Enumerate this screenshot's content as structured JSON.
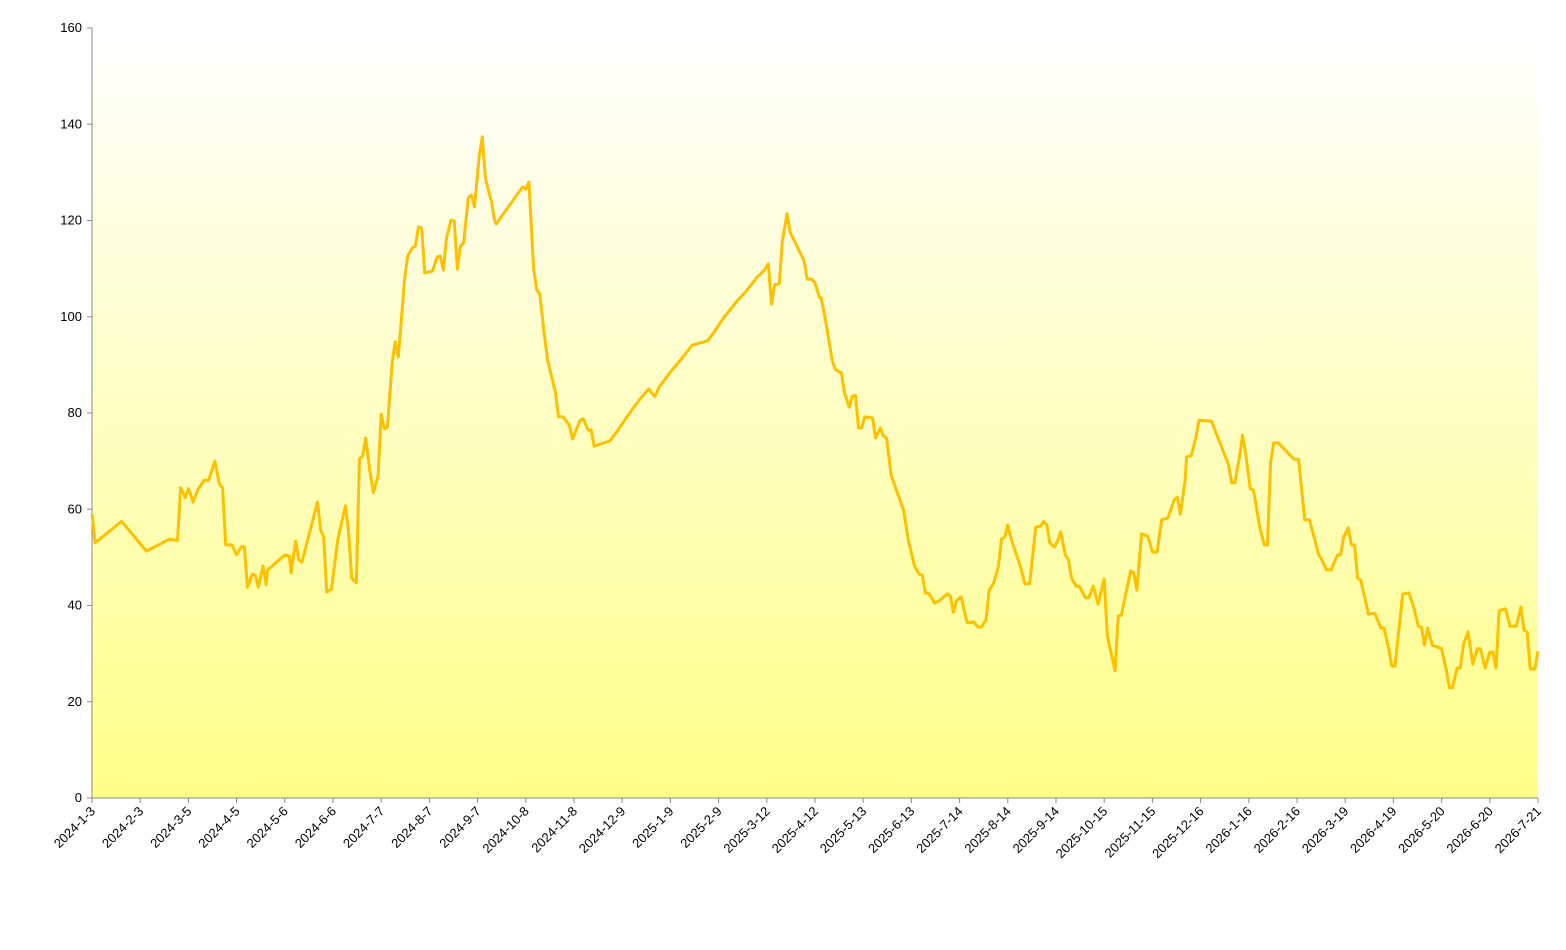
{
  "chart_data": {
    "type": "line",
    "x": [
      "2024-1-3",
      "2024-1-5",
      "2024-1-22",
      "2024-2-7",
      "2024-2-22",
      "2024-2-27",
      "2024-2-29",
      "2024-3-3",
      "2024-3-5",
      "2024-3-8",
      "2024-3-11",
      "2024-3-15",
      "2024-3-18",
      "2024-3-22",
      "2024-3-25",
      "2024-3-27",
      "2024-3-29",
      "2024-4-2",
      "2024-4-5",
      "2024-4-8",
      "2024-4-10",
      "2024-4-12",
      "2024-4-15",
      "2024-4-17",
      "2024-4-19",
      "2024-4-22",
      "2024-4-24",
      "2024-4-25",
      "2024-5-6",
      "2024-5-9",
      "2024-5-10",
      "2024-5-13",
      "2024-5-15",
      "2024-5-17",
      "2024-5-27",
      "2024-5-29",
      "2024-5-31",
      "2024-6-2",
      "2024-6-5",
      "2024-6-9",
      "2024-6-14",
      "2024-6-16",
      "2024-6-18",
      "2024-6-21",
      "2024-6-23",
      "2024-6-25",
      "2024-6-27",
      "2024-6-30",
      "2024-7-2",
      "2024-7-5",
      "2024-7-7",
      "2024-7-9",
      "2024-7-11",
      "2024-7-14",
      "2024-7-16",
      "2024-7-18",
      "2024-7-22",
      "2024-7-24",
      "2024-7-27",
      "2024-7-29",
      "2024-7-31",
      "2024-8-2",
      "2024-8-4",
      "2024-8-9",
      "2024-8-12",
      "2024-8-14",
      "2024-8-16",
      "2024-8-18",
      "2024-8-21",
      "2024-8-23",
      "2024-8-25",
      "2024-8-27",
      "2024-8-29",
      "2024-9-1",
      "2024-9-3",
      "2024-9-5",
      "2024-9-8",
      "2024-9-10",
      "2024-9-12",
      "2024-9-16",
      "2024-9-18",
      "2024-9-19",
      "2024-10-6",
      "2024-10-8",
      "2024-10-10",
      "2024-10-13",
      "2024-10-15",
      "2024-10-17",
      "2024-10-20",
      "2024-10-22",
      "2024-10-27",
      "2024-10-29",
      "2024-11-1",
      "2024-11-5",
      "2024-11-7",
      "2024-11-12",
      "2024-11-14",
      "2024-11-17",
      "2024-11-19",
      "2024-11-21",
      "2024-12-1",
      "2024-12-6",
      "2024-12-8",
      "2024-12-16",
      "2024-12-20",
      "2024-12-26",
      "2024-12-30",
      "2025-1-2",
      "2025-1-9",
      "2025-1-18",
      "2025-1-23",
      "2025-2-2",
      "2025-2-7",
      "2025-2-12",
      "2025-2-21",
      "2025-2-27",
      "2025-3-6",
      "2025-3-10",
      "2025-3-13",
      "2025-3-15",
      "2025-3-17",
      "2025-3-20",
      "2025-3-22",
      "2025-3-25",
      "2025-3-27",
      "2025-4-5",
      "2025-4-7",
      "2025-4-10",
      "2025-4-12",
      "2025-4-15",
      "2025-4-16",
      "2025-4-19",
      "2025-4-23",
      "2025-4-25",
      "2025-4-29",
      "2025-5-1",
      "2025-5-4",
      "2025-5-6",
      "2025-5-8",
      "2025-5-10",
      "2025-5-12",
      "2025-5-14",
      "2025-5-19",
      "2025-5-21",
      "2025-5-24",
      "2025-5-26",
      "2025-5-28",
      "2025-5-31",
      "2025-6-2",
      "2025-6-8",
      "2025-6-11",
      "2025-6-15",
      "2025-6-18",
      "2025-6-20",
      "2025-6-22",
      "2025-6-24",
      "2025-6-28",
      "2025-7-1",
      "2025-7-6",
      "2025-7-8",
      "2025-7-10",
      "2025-7-12",
      "2025-7-15",
      "2025-7-17",
      "2025-7-19",
      "2025-7-23",
      "2025-7-26",
      "2025-7-28",
      "2025-7-31",
      "2025-8-2",
      "2025-8-5",
      "2025-8-8",
      "2025-8-10",
      "2025-8-12",
      "2025-8-14",
      "2025-8-16",
      "2025-8-19",
      "2025-8-22",
      "2025-8-25",
      "2025-8-28",
      "2025-9-1",
      "2025-9-4",
      "2025-9-6",
      "2025-9-8",
      "2025-9-10",
      "2025-9-13",
      "2025-9-15",
      "2025-9-17",
      "2025-9-20",
      "2025-9-22",
      "2025-9-24",
      "2025-9-27",
      "2025-9-29",
      "2025-10-3",
      "2025-10-5",
      "2025-10-8",
      "2025-10-11",
      "2025-10-15",
      "2025-10-17",
      "2025-10-22",
      "2025-10-24",
      "2025-10-26",
      "2025-11-1",
      "2025-11-3",
      "2025-11-5",
      "2025-11-8",
      "2025-11-12",
      "2025-11-15",
      "2025-11-18",
      "2025-11-21",
      "2025-11-25",
      "2025-11-29",
      "2025-12-1",
      "2025-12-3",
      "2025-12-6",
      "2025-12-7",
      "2025-12-10",
      "2025-12-13",
      "2025-12-15",
      "2025-12-23",
      "2026-1-3",
      "2026-1-5",
      "2026-1-7",
      "2026-1-10",
      "2026-1-12",
      "2026-1-14",
      "2026-1-17",
      "2026-1-19",
      "2026-1-23",
      "2026-1-26",
      "2026-1-28",
      "2026-1-30",
      "2026-2-1",
      "2026-2-4",
      "2026-2-14",
      "2026-2-17",
      "2026-2-21",
      "2026-2-24",
      "2026-3-2",
      "2026-3-3",
      "2026-3-7",
      "2026-3-10",
      "2026-3-14",
      "2026-3-16",
      "2026-3-18",
      "2026-3-21",
      "2026-3-23",
      "2026-3-25",
      "2026-3-27",
      "2026-3-29",
      "2026-4-3",
      "2026-4-7",
      "2026-4-11",
      "2026-4-13",
      "2026-4-16",
      "2026-4-18",
      "2026-4-20",
      "2026-4-25",
      "2026-4-29",
      "2026-5-2",
      "2026-5-5",
      "2026-5-7",
      "2026-5-9",
      "2026-5-11",
      "2026-5-14",
      "2026-5-20",
      "2026-5-23",
      "2026-5-25",
      "2026-5-27",
      "2026-5-30",
      "2026-6-1",
      "2026-6-3",
      "2026-6-6",
      "2026-6-9",
      "2026-6-12",
      "2026-6-14",
      "2026-6-17",
      "2026-6-20",
      "2026-6-22",
      "2026-6-24",
      "2026-6-26",
      "2026-6-30",
      "2026-7-3",
      "2026-7-7",
      "2026-7-10",
      "2026-7-12",
      "2026-7-14",
      "2026-7-16",
      "2026-7-19",
      "2026-7-21"
    ],
    "values": [
      59,
      53,
      57.5,
      51.3,
      53.8,
      53.5,
      64.5,
      62.4,
      64.3,
      61.5,
      64,
      66,
      66,
      70,
      65.2,
      64.4,
      52.6,
      52.6,
      50.5,
      52.2,
      52.2,
      43.8,
      46.5,
      46.3,
      43.8,
      48.2,
      44.3,
      47.4,
      50.5,
      50.3,
      46.8,
      53.4,
      49.5,
      49,
      61.5,
      55.7,
      54.2,
      42.8,
      43.4,
      53.6,
      60.7,
      55.3,
      45.7,
      44.7,
      70.4,
      71,
      74.8,
      67.3,
      63.4,
      67,
      79.8,
      76.7,
      77.1,
      90.2,
      94.8,
      91.6,
      107.6,
      112.6,
      114.3,
      114.7,
      118.7,
      118.4,
      109.1,
      109.5,
      112.4,
      112.6,
      109.7,
      116.4,
      120.1,
      119.9,
      109.9,
      114.7,
      115.3,
      124.7,
      125.3,
      122.8,
      133.2,
      137.4,
      128.8,
      123.8,
      119.9,
      119.3,
      127,
      126.5,
      128,
      110.1,
      105.6,
      104.7,
      96,
      91,
      84.4,
      79.2,
      79.2,
      77.5,
      74.6,
      78.5,
      78.8,
      76.5,
      76.5,
      73.1,
      74.2,
      76.3,
      77.3,
      81,
      82.7,
      85,
      83.4,
      85.5,
      88.5,
      92,
      94.1,
      95,
      97.2,
      99.7,
      103.3,
      105.4,
      108.3,
      109.5,
      111,
      102.6,
      106.6,
      106.8,
      115.7,
      121.4,
      117.6,
      111.6,
      107.8,
      107.8,
      107,
      103.9,
      103.9,
      98.9,
      91,
      89.1,
      88.3,
      84.2,
      81.2,
      83.5,
      83.7,
      76.9,
      76.9,
      79.2,
      79,
      74.8,
      76.9,
      75.2,
      74.8,
      67.1,
      65.2,
      59.8,
      53.6,
      48.2,
      46.5,
      46.3,
      42.6,
      42.6,
      40.5,
      41,
      42.4,
      42,
      38.6,
      41,
      41.8,
      38.9,
      36.4,
      36.6,
      35.5,
      35.5,
      37,
      43.2,
      44.7,
      48.2,
      53.8,
      54.2,
      56.7,
      54,
      51.1,
      48.2,
      44.5,
      44.5,
      56.3,
      56.5,
      57.4,
      56.9,
      53,
      52.2,
      53.4,
      55.3,
      50.5,
      49.5,
      45.7,
      44,
      44,
      41.6,
      41.6,
      44,
      40.3,
      45.5,
      33.7,
      26.4,
      37.8,
      38,
      47.2,
      46.8,
      43.2,
      54.9,
      54.4,
      51.1,
      51.1,
      57.8,
      58.2,
      61.9,
      62.5,
      59,
      65.9,
      70.9,
      71.1,
      75,
      78.5,
      78.3,
      69.2,
      65.5,
      65.5,
      70.9,
      75.4,
      71.5,
      64.2,
      64,
      56.3,
      52.6,
      52.6,
      69.8,
      73.8,
      73.8,
      70.4,
      70.4,
      57.8,
      57.8,
      50.5,
      50.1,
      47.4,
      47.4,
      50.5,
      50.5,
      54.2,
      56.1,
      52.6,
      52.6,
      45.7,
      45.3,
      38.2,
      38.4,
      35.3,
      35.3,
      31,
      27.4,
      27.4,
      42.4,
      42.6,
      39.7,
      35.7,
      35.5,
      31.8,
      35.3,
      31.8,
      31,
      26.6,
      22.9,
      22.9,
      27,
      27,
      31.8,
      34.5,
      27.8,
      31,
      31,
      27,
      30.3,
      30.3,
      27,
      38.9,
      39.3,
      35.7,
      35.7,
      39.7,
      34.9,
      34.5,
      26.8,
      26.8,
      30.5
    ],
    "color": "#ffc000",
    "xlim": [
      "2024-1-3",
      "2026-7-21"
    ],
    "xticks": [
      "2024-1-3",
      "2024-2-3",
      "2024-3-5",
      "2024-4-5",
      "2024-5-6",
      "2024-6-6",
      "2024-7-7",
      "2024-8-7",
      "2024-9-7",
      "2024-10-8",
      "2024-11-8",
      "2024-12-9",
      "2025-1-9",
      "2025-2-9",
      "2025-3-12",
      "2025-4-12",
      "2025-5-13",
      "2025-6-13",
      "2025-7-14",
      "2025-8-14",
      "2025-9-14",
      "2025-10-15",
      "2025-11-15",
      "2025-12-16",
      "2026-1-16",
      "2026-2-16",
      "2026-3-19",
      "2026-4-19",
      "2026-5-20",
      "2026-6-20",
      "2026-7-21"
    ],
    "ylim": [
      0,
      160
    ],
    "yticks": [
      0,
      20,
      40,
      60,
      80,
      100,
      120,
      140,
      160
    ]
  }
}
